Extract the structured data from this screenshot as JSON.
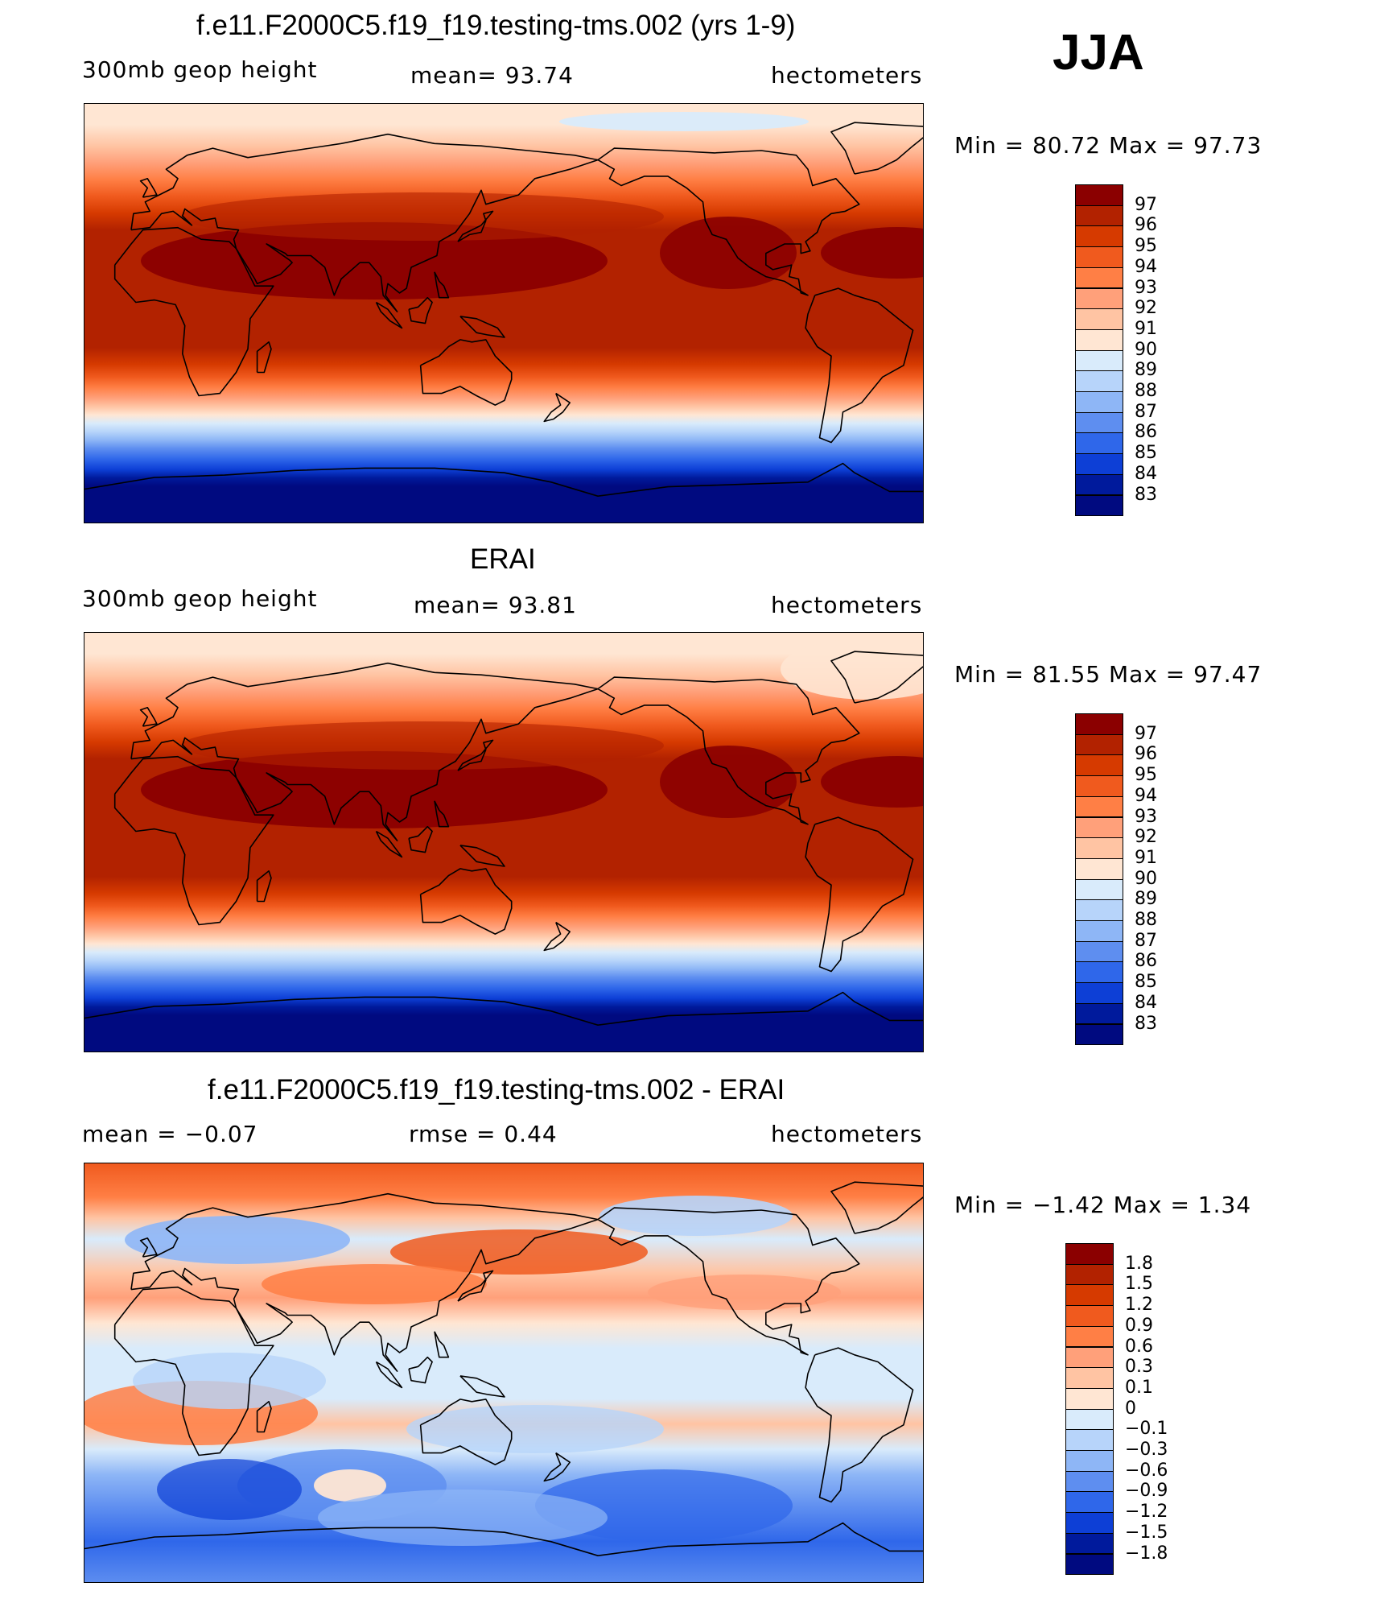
{
  "season": "JJA",
  "panels": [
    {
      "title": "f.e11.F2000C5.f19_f19.testing-tms.002 (yrs 1-9)",
      "left_label": "300mb geop height",
      "center_label": "mean=   93.74",
      "right_label": "hectometers",
      "minmax": "Min =   80.72 Max =   97.73",
      "kind": "abs"
    },
    {
      "title": "ERAI",
      "left_label": "300mb geop height",
      "center_label": "mean=   93.81",
      "right_label": "hectometers",
      "minmax": "Min =   81.55 Max =   97.47",
      "kind": "abs2"
    },
    {
      "title": "f.e11.F2000C5.f19_f19.testing-tms.002 - ERAI",
      "left_label": "mean =   −0.07",
      "center_label": "rmse =    0.44",
      "right_label": "hectometers",
      "minmax": "Min =   −1.42 Max =    1.34",
      "kind": "diff"
    }
  ],
  "colorbars": {
    "abs": {
      "labels": [
        "97",
        "96",
        "95",
        "94",
        "93",
        "92",
        "91",
        "90",
        "89",
        "88",
        "87",
        "86",
        "85",
        "84",
        "83"
      ],
      "colors": [
        "#8b0000",
        "#b22200",
        "#d63a00",
        "#f05a1e",
        "#ff7f45",
        "#ffa07a",
        "#ffc4a3",
        "#ffe6d3",
        "#d9ebfb",
        "#b7d4fa",
        "#8eb6f6",
        "#5e8ef0",
        "#2f67ea",
        "#0d3fd6",
        "#001a9c",
        "#000a80"
      ]
    },
    "diff": {
      "labels": [
        "1.8",
        "1.5",
        "1.2",
        "0.9",
        "0.6",
        "0.3",
        "0.1",
        "0",
        "−0.1",
        "−0.3",
        "−0.6",
        "−0.9",
        "−1.2",
        "−1.5",
        "−1.8"
      ],
      "colors": [
        "#8b0000",
        "#b22200",
        "#d63a00",
        "#f05a1e",
        "#ff7f45",
        "#ffa07a",
        "#ffc4a3",
        "#ffe6d3",
        "#d9ebfb",
        "#b7d4fa",
        "#8eb6f6",
        "#5e8ef0",
        "#2f67ea",
        "#0d3fd6",
        "#001a9c",
        "#000a80"
      ]
    }
  }
}
